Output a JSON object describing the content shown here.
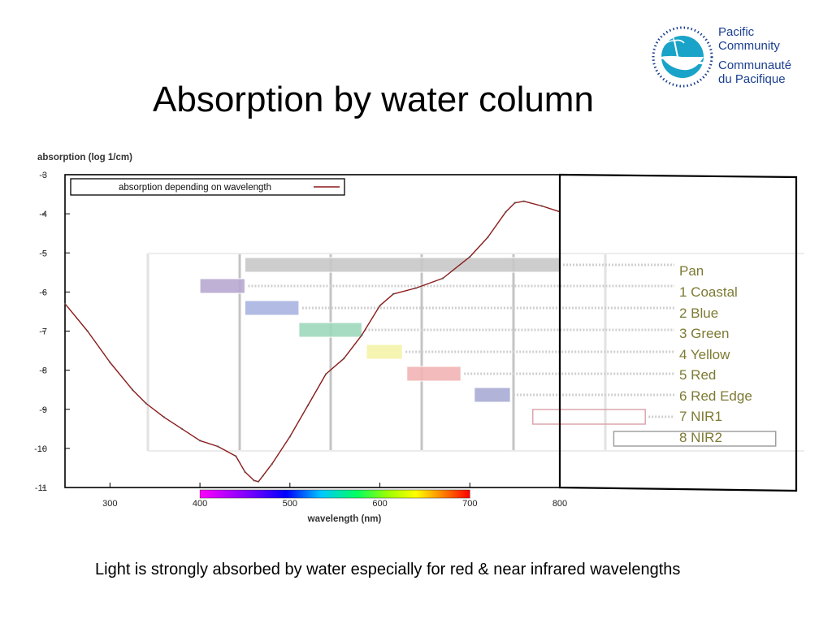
{
  "slide": {
    "title": "Absorption by water column",
    "caption": "Light is strongly absorbed by water especially for red & near infrared wavelengths"
  },
  "logo": {
    "line1": "Pacific",
    "line2": "Community",
    "line3": "Communauté",
    "line4": "du Pacifique",
    "colors": {
      "text": "#1b3f8f",
      "emblem": "#1aa3c8",
      "dots": "#1b3f8f"
    }
  },
  "chart_data": {
    "type": "line",
    "ylabel": "absorption (log 1/cm)",
    "xlabel": "wavelength (nm)",
    "xlim": [
      250,
      800
    ],
    "ylim": [
      -11,
      -3
    ],
    "x_ticks": [
      300,
      400,
      500,
      600,
      700,
      800
    ],
    "y_ticks": [
      -3,
      -4,
      -5,
      -6,
      -7,
      -8,
      -9,
      -10,
      -11
    ],
    "grid": false,
    "legend": {
      "position": "top-left",
      "entries": [
        "absorption depending on wavelength"
      ]
    },
    "series": [
      {
        "name": "absorption depending on wavelength",
        "color": "#8b1a1a",
        "x": [
          250,
          275,
          300,
          325,
          340,
          360,
          380,
          400,
          420,
          440,
          450,
          460,
          465,
          470,
          480,
          500,
          520,
          540,
          560,
          580,
          600,
          615,
          640,
          670,
          700,
          720,
          740,
          750,
          760,
          780,
          800
        ],
        "y": [
          -6.3,
          -7.0,
          -7.8,
          -8.5,
          -8.85,
          -9.2,
          -9.5,
          -9.8,
          -9.95,
          -10.2,
          -10.6,
          -10.82,
          -10.85,
          -10.7,
          -10.4,
          -9.7,
          -8.9,
          -8.1,
          -7.7,
          -7.1,
          -6.35,
          -6.05,
          -5.9,
          -5.65,
          -5.1,
          -4.6,
          -3.95,
          -3.72,
          -3.68,
          -3.8,
          -3.95
        ]
      }
    ],
    "spectrum_bar": {
      "from": 400,
      "to": 700
    },
    "bands": [
      {
        "label": "Pan",
        "from": 450,
        "to": 800,
        "color": "#c8c8c8"
      },
      {
        "label": "1 Coastal",
        "from": 400,
        "to": 450,
        "color": "#b8a8d0"
      },
      {
        "label": "2 Blue",
        "from": 450,
        "to": 510,
        "color": "#aab4e0"
      },
      {
        "label": "3 Green",
        "from": 510,
        "to": 580,
        "color": "#9fd8bb"
      },
      {
        "label": "4 Yellow",
        "from": 585,
        "to": 625,
        "color": "#f4f3a8"
      },
      {
        "label": "5 Red",
        "from": 630,
        "to": 690,
        "color": "#f2b4b4"
      },
      {
        "label": "6 Red Edge",
        "from": 705,
        "to": 745,
        "color": "#a9acd4"
      },
      {
        "label": "7 NIR1",
        "from": 770,
        "to": 895,
        "color": "none"
      },
      {
        "label": "8 NIR2",
        "from": 860,
        "to": 1040,
        "color": "none"
      }
    ]
  }
}
